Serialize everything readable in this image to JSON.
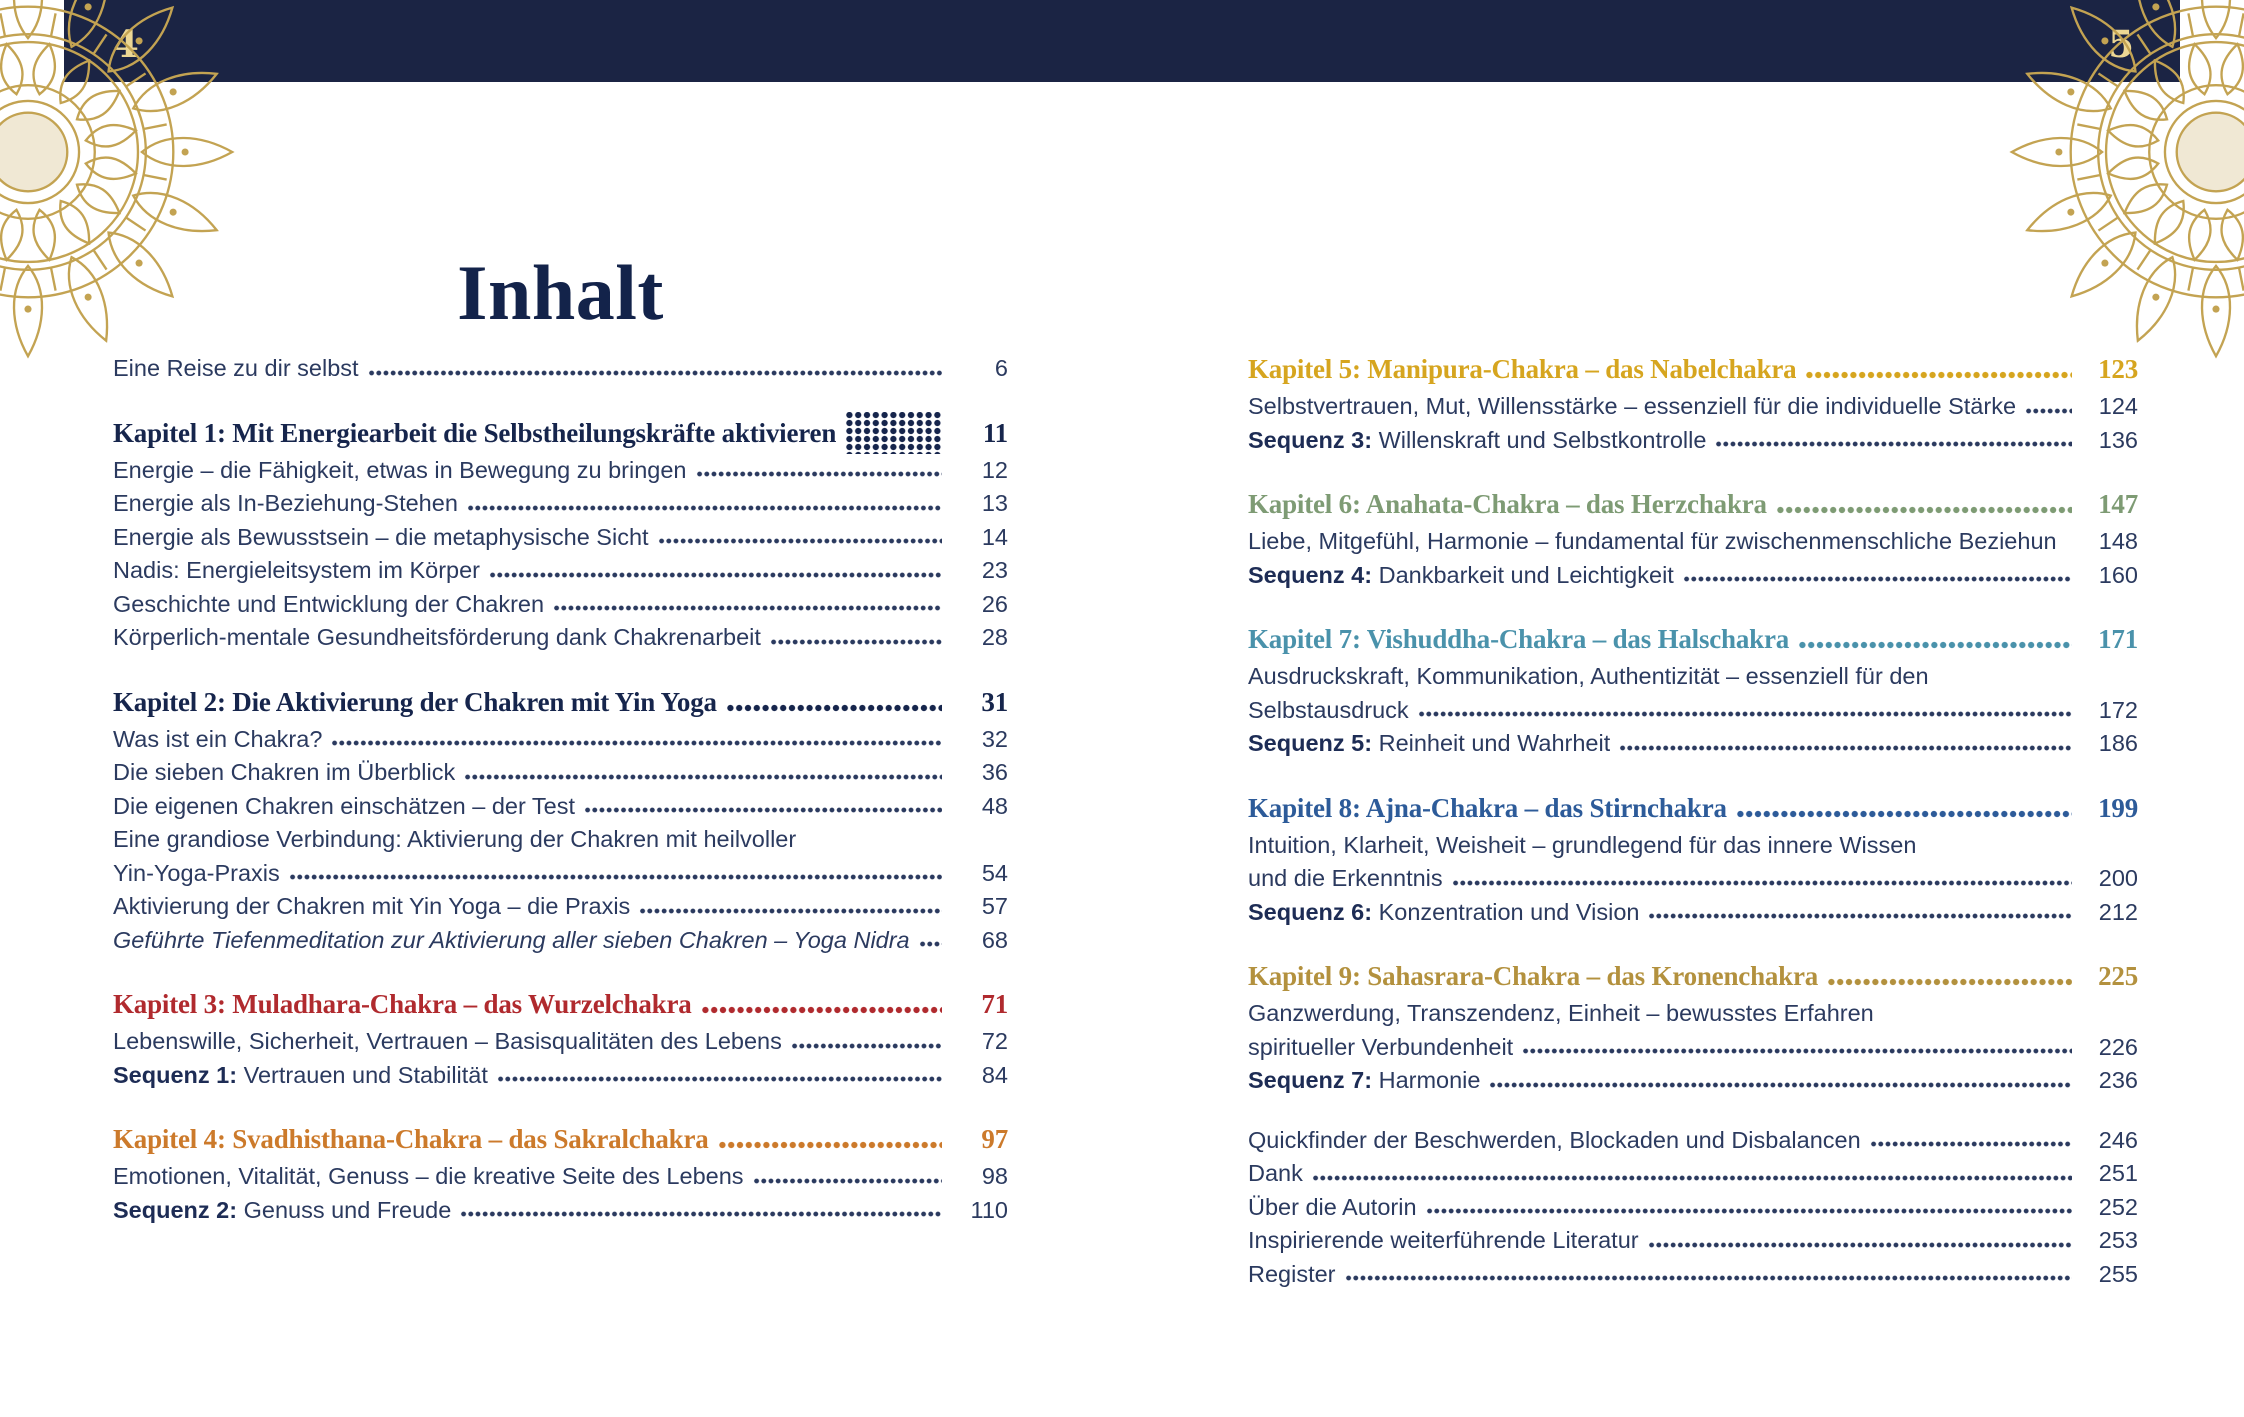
{
  "header": {
    "left_page": "4",
    "right_page": "5"
  },
  "title": "Inhalt",
  "colors": {
    "navy": "#16254c",
    "red": "#b02a2e",
    "orange": "#cc7a2b",
    "gold": "#d6a51f",
    "green": "#7e9b74",
    "teal": "#4a92ab",
    "blue": "#2d5b99",
    "bronze": "#b3913e",
    "body_text": "#2b3a5f",
    "bar": "#1b2444",
    "bar_page_number": "#ecd794",
    "ornament_gold": "#c3a352"
  },
  "left_column": {
    "sections": [
      {
        "items": [
          {
            "text": "Eine Reise zu dir selbst",
            "page": "6"
          }
        ]
      },
      {
        "heading": {
          "text": "Kapitel 1: Mit Energiearbeit die Selbstheilungskräfte aktivieren",
          "page": "11",
          "color": "navy",
          "dots": false
        },
        "items": [
          {
            "text": "Energie – die Fähigkeit, etwas in Bewegung zu bringen",
            "page": "12"
          },
          {
            "text": "Energie als In-Beziehung-Stehen",
            "page": "13"
          },
          {
            "text": "Energie als Bewusstsein – die metaphysische Sicht",
            "page": "14"
          },
          {
            "text": "Nadis: Energieleitsystem im Körper",
            "page": "23"
          },
          {
            "text": "Geschichte und Entwicklung der Chakren",
            "page": "26"
          },
          {
            "text": "Körperlich-mentale Gesundheitsförderung dank Chakrenarbeit",
            "page": "28"
          }
        ]
      },
      {
        "heading": {
          "text": "Kapitel 2: Die Aktivierung der Chakren mit Yin Yoga",
          "page": "31",
          "color": "navy",
          "dots": true
        },
        "items": [
          {
            "text": "Was ist ein Chakra?",
            "page": "32"
          },
          {
            "text": "Die sieben Chakren im Überblick",
            "page": "36"
          },
          {
            "text": "Die eigenen Chakren einschätzen – der Test",
            "page": "48"
          },
          {
            "pre_line": "Eine grandiose Verbindung: Aktivierung der Chakren mit heilvoller",
            "text": "Yin-Yoga-Praxis",
            "page": "54"
          },
          {
            "text": "Aktivierung der Chakren mit Yin Yoga – die Praxis",
            "page": "57"
          },
          {
            "text": "Geführte Tiefenmeditation zur Aktivierung aller sieben Chakren – Yoga Nidra",
            "page": "68",
            "italic": true
          }
        ]
      },
      {
        "heading": {
          "text": "Kapitel 3: Muladhara-Chakra – das Wurzelchakra",
          "page": "71",
          "color": "red",
          "dots": true
        },
        "items": [
          {
            "text": "Lebenswille, Sicherheit, Vertrauen – Basisqualitäten des Lebens",
            "page": "72"
          },
          {
            "prefix": "Sequenz 1:",
            "text": "Vertrauen und Stabilität",
            "page": "84"
          }
        ]
      },
      {
        "heading": {
          "text": "Kapitel 4: Svadhisthana-Chakra – das Sakralchakra",
          "page": "97",
          "color": "orange",
          "dots": true
        },
        "items": [
          {
            "text": "Emotionen, Vitalität, Genuss – die kreative Seite des Lebens",
            "page": "98"
          },
          {
            "prefix": "Sequenz 2:",
            "text": "Genuss und Freude",
            "page": "110"
          }
        ]
      }
    ]
  },
  "right_column": {
    "sections": [
      {
        "heading": {
          "text": "Kapitel 5: Manipura-Chakra – das Nabelchakra",
          "page": "123",
          "color": "gold",
          "dots": true
        },
        "items": [
          {
            "text": "Selbstvertrauen, Mut, Willensstärke – essenziell für die individuelle Stärke",
            "page": "124"
          },
          {
            "prefix": "Sequenz 3:",
            "text": "Willenskraft und Selbstkontrolle",
            "page": "136"
          }
        ]
      },
      {
        "heading": {
          "text": "Kapitel 6: Anahata-Chakra – das Herzchakra",
          "page": "147",
          "color": "green",
          "dots": true
        },
        "items": [
          {
            "text": "Liebe, Mitgefühl, Harmonie – fundamental für zwischenmenschliche Beziehungen",
            "page": "148",
            "dots": false
          },
          {
            "prefix": "Sequenz 4:",
            "text": "Dankbarkeit und Leichtigkeit",
            "page": "160"
          }
        ]
      },
      {
        "heading": {
          "text": "Kapitel 7: Vishuddha-Chakra – das Halschakra",
          "page": "171",
          "color": "teal",
          "dots": true
        },
        "items": [
          {
            "pre_line": "Ausdruckskraft, Kommunikation, Authentizität – essenziell für den",
            "text": "Selbstausdruck",
            "page": "172"
          },
          {
            "prefix": "Sequenz 5:",
            "text": "Reinheit und Wahrheit",
            "page": "186"
          }
        ]
      },
      {
        "heading": {
          "text": "Kapitel 8: Ajna-Chakra – das Stirnchakra",
          "page": "199",
          "color": "blue",
          "dots": true
        },
        "items": [
          {
            "pre_line": "Intuition, Klarheit, Weisheit – grundlegend für das innere Wissen",
            "text": "und die Erkenntnis",
            "page": "200"
          },
          {
            "prefix": "Sequenz 6:",
            "text": "Konzentration und Vision",
            "page": "212"
          }
        ]
      },
      {
        "heading": {
          "text": "Kapitel 9: Sahasrara-Chakra – das Kronenchakra",
          "page": "225",
          "color": "bronze",
          "dots": true
        },
        "items": [
          {
            "pre_line": "Ganzwerdung, Transzendenz, Einheit – bewusstes Erfahren",
            "text": "spiritueller Verbundenheit",
            "page": "226"
          },
          {
            "prefix": "Sequenz 7:",
            "text": "Harmonie",
            "page": "236"
          }
        ]
      },
      {
        "items": [
          {
            "text": "Quickfinder der Beschwerden, Blockaden und Disbalancen",
            "page": "246"
          },
          {
            "text": "Dank",
            "page": "251"
          },
          {
            "text": "Über die Autorin",
            "page": "252"
          },
          {
            "text": "Inspirierende weiterführende Literatur",
            "page": "253"
          },
          {
            "text": "Register",
            "page": "255"
          }
        ]
      }
    ]
  }
}
